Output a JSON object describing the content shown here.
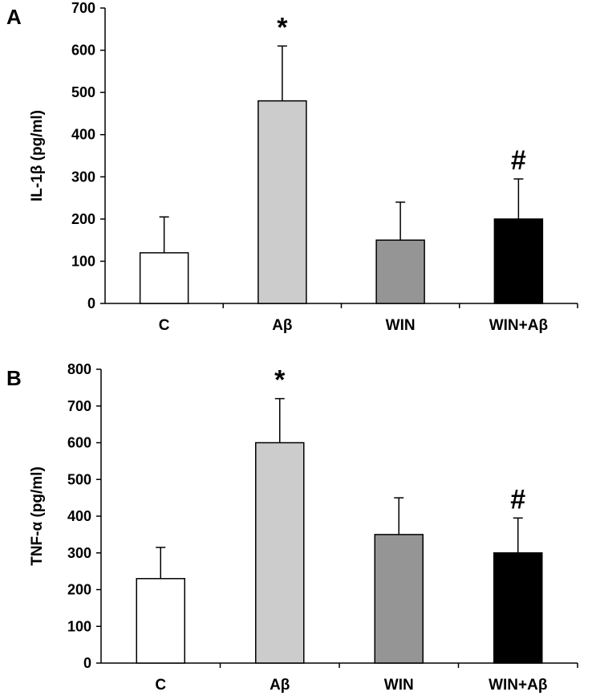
{
  "chart_data": [
    {
      "type": "bar",
      "panel_label": "A",
      "title": "",
      "xlabel": "",
      "ylabel": "IL-1β (pg/ml)",
      "categories": [
        "C",
        "Aβ",
        "WIN",
        "WIN+Aβ"
      ],
      "values": [
        120,
        480,
        150,
        200
      ],
      "error_plus": [
        85,
        130,
        90,
        95
      ],
      "annotations": [
        "",
        "*",
        "",
        "#"
      ],
      "bar_colors": [
        "#ffffff",
        "#cccccc",
        "#959595",
        "#000000"
      ],
      "ylim": [
        0,
        700
      ],
      "yticks": [
        "0",
        "100",
        "200",
        "300",
        "400",
        "500",
        "600",
        "700"
      ],
      "grid": false,
      "legend": "none"
    },
    {
      "type": "bar",
      "panel_label": "B",
      "title": "",
      "xlabel": "",
      "ylabel": "TNF-α (pg/ml)",
      "categories": [
        "C",
        "Aβ",
        "WIN",
        "WIN+Aβ"
      ],
      "values": [
        230,
        600,
        350,
        300
      ],
      "error_plus": [
        85,
        120,
        100,
        95
      ],
      "annotations": [
        "",
        "*",
        "",
        "#"
      ],
      "bar_colors": [
        "#ffffff",
        "#cccccc",
        "#959595",
        "#000000"
      ],
      "ylim": [
        0,
        800
      ],
      "yticks": [
        "0",
        "100",
        "200",
        "300",
        "400",
        "500",
        "600",
        "700",
        "800"
      ],
      "grid": false,
      "legend": "none"
    }
  ]
}
